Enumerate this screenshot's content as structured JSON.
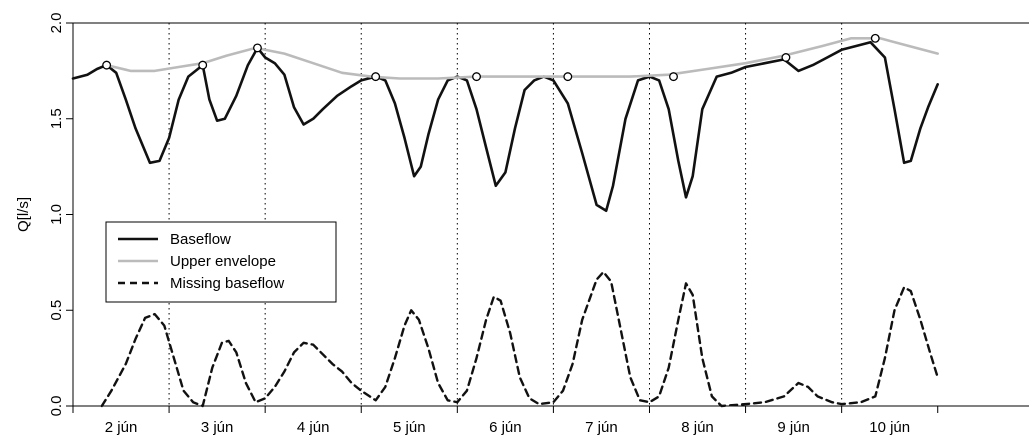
{
  "chart_data": {
    "type": "line",
    "title": "",
    "xlabel": "",
    "ylabel": "Q[l/s]",
    "xlim": [
      1.0,
      10.95
    ],
    "ylim": [
      0.0,
      2.0
    ],
    "x_unit": "days (June)",
    "x_ticks": [
      {
        "label": "2 jún",
        "start": 1.0,
        "end": 2.0
      },
      {
        "label": "3 jún",
        "start": 2.0,
        "end": 3.0
      },
      {
        "label": "4 jún",
        "start": 3.0,
        "end": 4.0
      },
      {
        "label": "5 jún",
        "start": 4.0,
        "end": 5.0
      },
      {
        "label": "6 jún",
        "start": 5.0,
        "end": 6.0
      },
      {
        "label": "7 jún",
        "start": 6.0,
        "end": 7.0
      },
      {
        "label": "8 jún",
        "start": 7.0,
        "end": 8.0
      },
      {
        "label": "9 jún",
        "start": 8.0,
        "end": 9.0
      },
      {
        "label": "10 jún",
        "start": 9.0,
        "end": 10.0
      }
    ],
    "y_ticks": [
      0.0,
      0.5,
      1.0,
      1.5,
      2.0
    ],
    "y_tick_labels": [
      "0.0",
      "0.5",
      "1.0",
      "1.5",
      "2.0"
    ],
    "day_dividers": [
      2,
      3,
      4,
      5,
      6,
      7,
      8,
      9
    ],
    "grid": false,
    "legend": {
      "position": "middle-left",
      "entries": [
        "Baseflow",
        "Upper envelope",
        "Missing baseflow"
      ]
    },
    "series": [
      {
        "name": "Baseflow",
        "color": "#111111",
        "style": "solid",
        "points": [
          [
            1.0,
            1.71
          ],
          [
            1.15,
            1.73
          ],
          [
            1.25,
            1.76
          ],
          [
            1.35,
            1.78
          ],
          [
            1.45,
            1.74
          ],
          [
            1.55,
            1.6
          ],
          [
            1.65,
            1.45
          ],
          [
            1.75,
            1.33
          ],
          [
            1.8,
            1.27
          ],
          [
            1.9,
            1.28
          ],
          [
            2.0,
            1.4
          ],
          [
            2.1,
            1.6
          ],
          [
            2.2,
            1.72
          ],
          [
            2.3,
            1.76
          ],
          [
            2.35,
            1.78
          ],
          [
            2.42,
            1.6
          ],
          [
            2.5,
            1.49
          ],
          [
            2.58,
            1.5
          ],
          [
            2.7,
            1.62
          ],
          [
            2.82,
            1.78
          ],
          [
            2.92,
            1.87
          ],
          [
            3.0,
            1.82
          ],
          [
            3.1,
            1.79
          ],
          [
            3.2,
            1.73
          ],
          [
            3.3,
            1.56
          ],
          [
            3.4,
            1.47
          ],
          [
            3.5,
            1.5
          ],
          [
            3.6,
            1.55
          ],
          [
            3.75,
            1.62
          ],
          [
            3.9,
            1.67
          ],
          [
            4.0,
            1.7
          ],
          [
            4.15,
            1.72
          ],
          [
            4.25,
            1.7
          ],
          [
            4.35,
            1.58
          ],
          [
            4.45,
            1.4
          ],
          [
            4.55,
            1.2
          ],
          [
            4.62,
            1.25
          ],
          [
            4.7,
            1.42
          ],
          [
            4.8,
            1.6
          ],
          [
            4.9,
            1.7
          ],
          [
            5.0,
            1.72
          ],
          [
            5.1,
            1.7
          ],
          [
            5.2,
            1.55
          ],
          [
            5.3,
            1.35
          ],
          [
            5.4,
            1.15
          ],
          [
            5.5,
            1.22
          ],
          [
            5.6,
            1.45
          ],
          [
            5.7,
            1.65
          ],
          [
            5.8,
            1.7
          ],
          [
            5.9,
            1.72
          ],
          [
            6.0,
            1.7
          ],
          [
            6.15,
            1.58
          ],
          [
            6.3,
            1.32
          ],
          [
            6.45,
            1.05
          ],
          [
            6.55,
            1.02
          ],
          [
            6.62,
            1.15
          ],
          [
            6.75,
            1.5
          ],
          [
            6.88,
            1.7
          ],
          [
            7.0,
            1.72
          ],
          [
            7.1,
            1.7
          ],
          [
            7.2,
            1.55
          ],
          [
            7.3,
            1.28
          ],
          [
            7.38,
            1.09
          ],
          [
            7.45,
            1.2
          ],
          [
            7.55,
            1.55
          ],
          [
            7.7,
            1.72
          ],
          [
            7.85,
            1.74
          ],
          [
            8.0,
            1.77
          ],
          [
            8.2,
            1.79
          ],
          [
            8.4,
            1.81
          ],
          [
            8.55,
            1.75
          ],
          [
            8.7,
            1.78
          ],
          [
            8.85,
            1.82
          ],
          [
            9.0,
            1.86
          ],
          [
            9.15,
            1.88
          ],
          [
            9.3,
            1.9
          ],
          [
            9.45,
            1.82
          ],
          [
            9.55,
            1.55
          ],
          [
            9.65,
            1.27
          ],
          [
            9.72,
            1.28
          ],
          [
            9.82,
            1.45
          ],
          [
            9.9,
            1.56
          ],
          [
            10.0,
            1.68
          ]
        ]
      },
      {
        "name": "Upper envelope",
        "color": "#bbbbbb",
        "style": "solid",
        "points": [
          [
            1.35,
            1.78
          ],
          [
            1.6,
            1.75
          ],
          [
            1.85,
            1.75
          ],
          [
            2.1,
            1.77
          ],
          [
            2.35,
            1.79
          ],
          [
            2.6,
            1.83
          ],
          [
            2.9,
            1.87
          ],
          [
            3.2,
            1.84
          ],
          [
            3.5,
            1.79
          ],
          [
            3.8,
            1.74
          ],
          [
            4.1,
            1.72
          ],
          [
            4.4,
            1.71
          ],
          [
            4.8,
            1.71
          ],
          [
            5.2,
            1.72
          ],
          [
            5.6,
            1.72
          ],
          [
            6.0,
            1.72
          ],
          [
            6.4,
            1.72
          ],
          [
            6.8,
            1.72
          ],
          [
            7.2,
            1.73
          ],
          [
            7.6,
            1.76
          ],
          [
            8.0,
            1.79
          ],
          [
            8.4,
            1.83
          ],
          [
            8.8,
            1.88
          ],
          [
            9.1,
            1.92
          ],
          [
            9.4,
            1.92
          ],
          [
            9.7,
            1.88
          ],
          [
            10.0,
            1.84
          ]
        ]
      },
      {
        "name": "Missing baseflow",
        "color": "#111111",
        "style": "dashed",
        "points": [
          [
            1.3,
            0.0
          ],
          [
            1.4,
            0.08
          ],
          [
            1.55,
            0.22
          ],
          [
            1.65,
            0.35
          ],
          [
            1.75,
            0.46
          ],
          [
            1.85,
            0.48
          ],
          [
            1.95,
            0.42
          ],
          [
            2.05,
            0.25
          ],
          [
            2.15,
            0.08
          ],
          [
            2.25,
            0.02
          ],
          [
            2.35,
            0.0
          ],
          [
            2.45,
            0.2
          ],
          [
            2.55,
            0.33
          ],
          [
            2.62,
            0.34
          ],
          [
            2.7,
            0.28
          ],
          [
            2.8,
            0.12
          ],
          [
            2.9,
            0.02
          ],
          [
            3.0,
            0.04
          ],
          [
            3.1,
            0.1
          ],
          [
            3.2,
            0.18
          ],
          [
            3.3,
            0.28
          ],
          [
            3.4,
            0.33
          ],
          [
            3.5,
            0.32
          ],
          [
            3.6,
            0.27
          ],
          [
            3.7,
            0.22
          ],
          [
            3.8,
            0.18
          ],
          [
            3.9,
            0.12
          ],
          [
            4.0,
            0.08
          ],
          [
            4.15,
            0.03
          ],
          [
            4.25,
            0.1
          ],
          [
            4.35,
            0.25
          ],
          [
            4.45,
            0.42
          ],
          [
            4.52,
            0.5
          ],
          [
            4.6,
            0.45
          ],
          [
            4.7,
            0.3
          ],
          [
            4.8,
            0.12
          ],
          [
            4.9,
            0.03
          ],
          [
            5.0,
            0.02
          ],
          [
            5.1,
            0.08
          ],
          [
            5.2,
            0.25
          ],
          [
            5.3,
            0.45
          ],
          [
            5.38,
            0.57
          ],
          [
            5.45,
            0.55
          ],
          [
            5.55,
            0.38
          ],
          [
            5.65,
            0.15
          ],
          [
            5.75,
            0.04
          ],
          [
            5.85,
            0.01
          ],
          [
            6.0,
            0.02
          ],
          [
            6.1,
            0.08
          ],
          [
            6.2,
            0.22
          ],
          [
            6.3,
            0.45
          ],
          [
            6.45,
            0.66
          ],
          [
            6.52,
            0.7
          ],
          [
            6.6,
            0.65
          ],
          [
            6.7,
            0.4
          ],
          [
            6.8,
            0.15
          ],
          [
            6.9,
            0.03
          ],
          [
            7.0,
            0.02
          ],
          [
            7.1,
            0.05
          ],
          [
            7.2,
            0.2
          ],
          [
            7.3,
            0.45
          ],
          [
            7.38,
            0.64
          ],
          [
            7.45,
            0.58
          ],
          [
            7.55,
            0.25
          ],
          [
            7.65,
            0.05
          ],
          [
            7.75,
            0.0
          ],
          [
            8.0,
            0.01
          ],
          [
            8.2,
            0.02
          ],
          [
            8.4,
            0.05
          ],
          [
            8.55,
            0.12
          ],
          [
            8.65,
            0.1
          ],
          [
            8.75,
            0.05
          ],
          [
            8.9,
            0.02
          ],
          [
            9.0,
            0.01
          ],
          [
            9.2,
            0.02
          ],
          [
            9.35,
            0.05
          ],
          [
            9.45,
            0.25
          ],
          [
            9.55,
            0.5
          ],
          [
            9.65,
            0.62
          ],
          [
            9.72,
            0.6
          ],
          [
            9.82,
            0.45
          ],
          [
            9.92,
            0.28
          ],
          [
            10.0,
            0.15
          ]
        ]
      }
    ],
    "markers": {
      "style": "open-circle",
      "points": [
        [
          1.35,
          1.78
        ],
        [
          2.35,
          1.78
        ],
        [
          2.92,
          1.87
        ],
        [
          4.15,
          1.72
        ],
        [
          5.2,
          1.72
        ],
        [
          6.15,
          1.72
        ],
        [
          7.25,
          1.72
        ],
        [
          8.42,
          1.82
        ],
        [
          9.35,
          1.92
        ]
      ]
    }
  }
}
